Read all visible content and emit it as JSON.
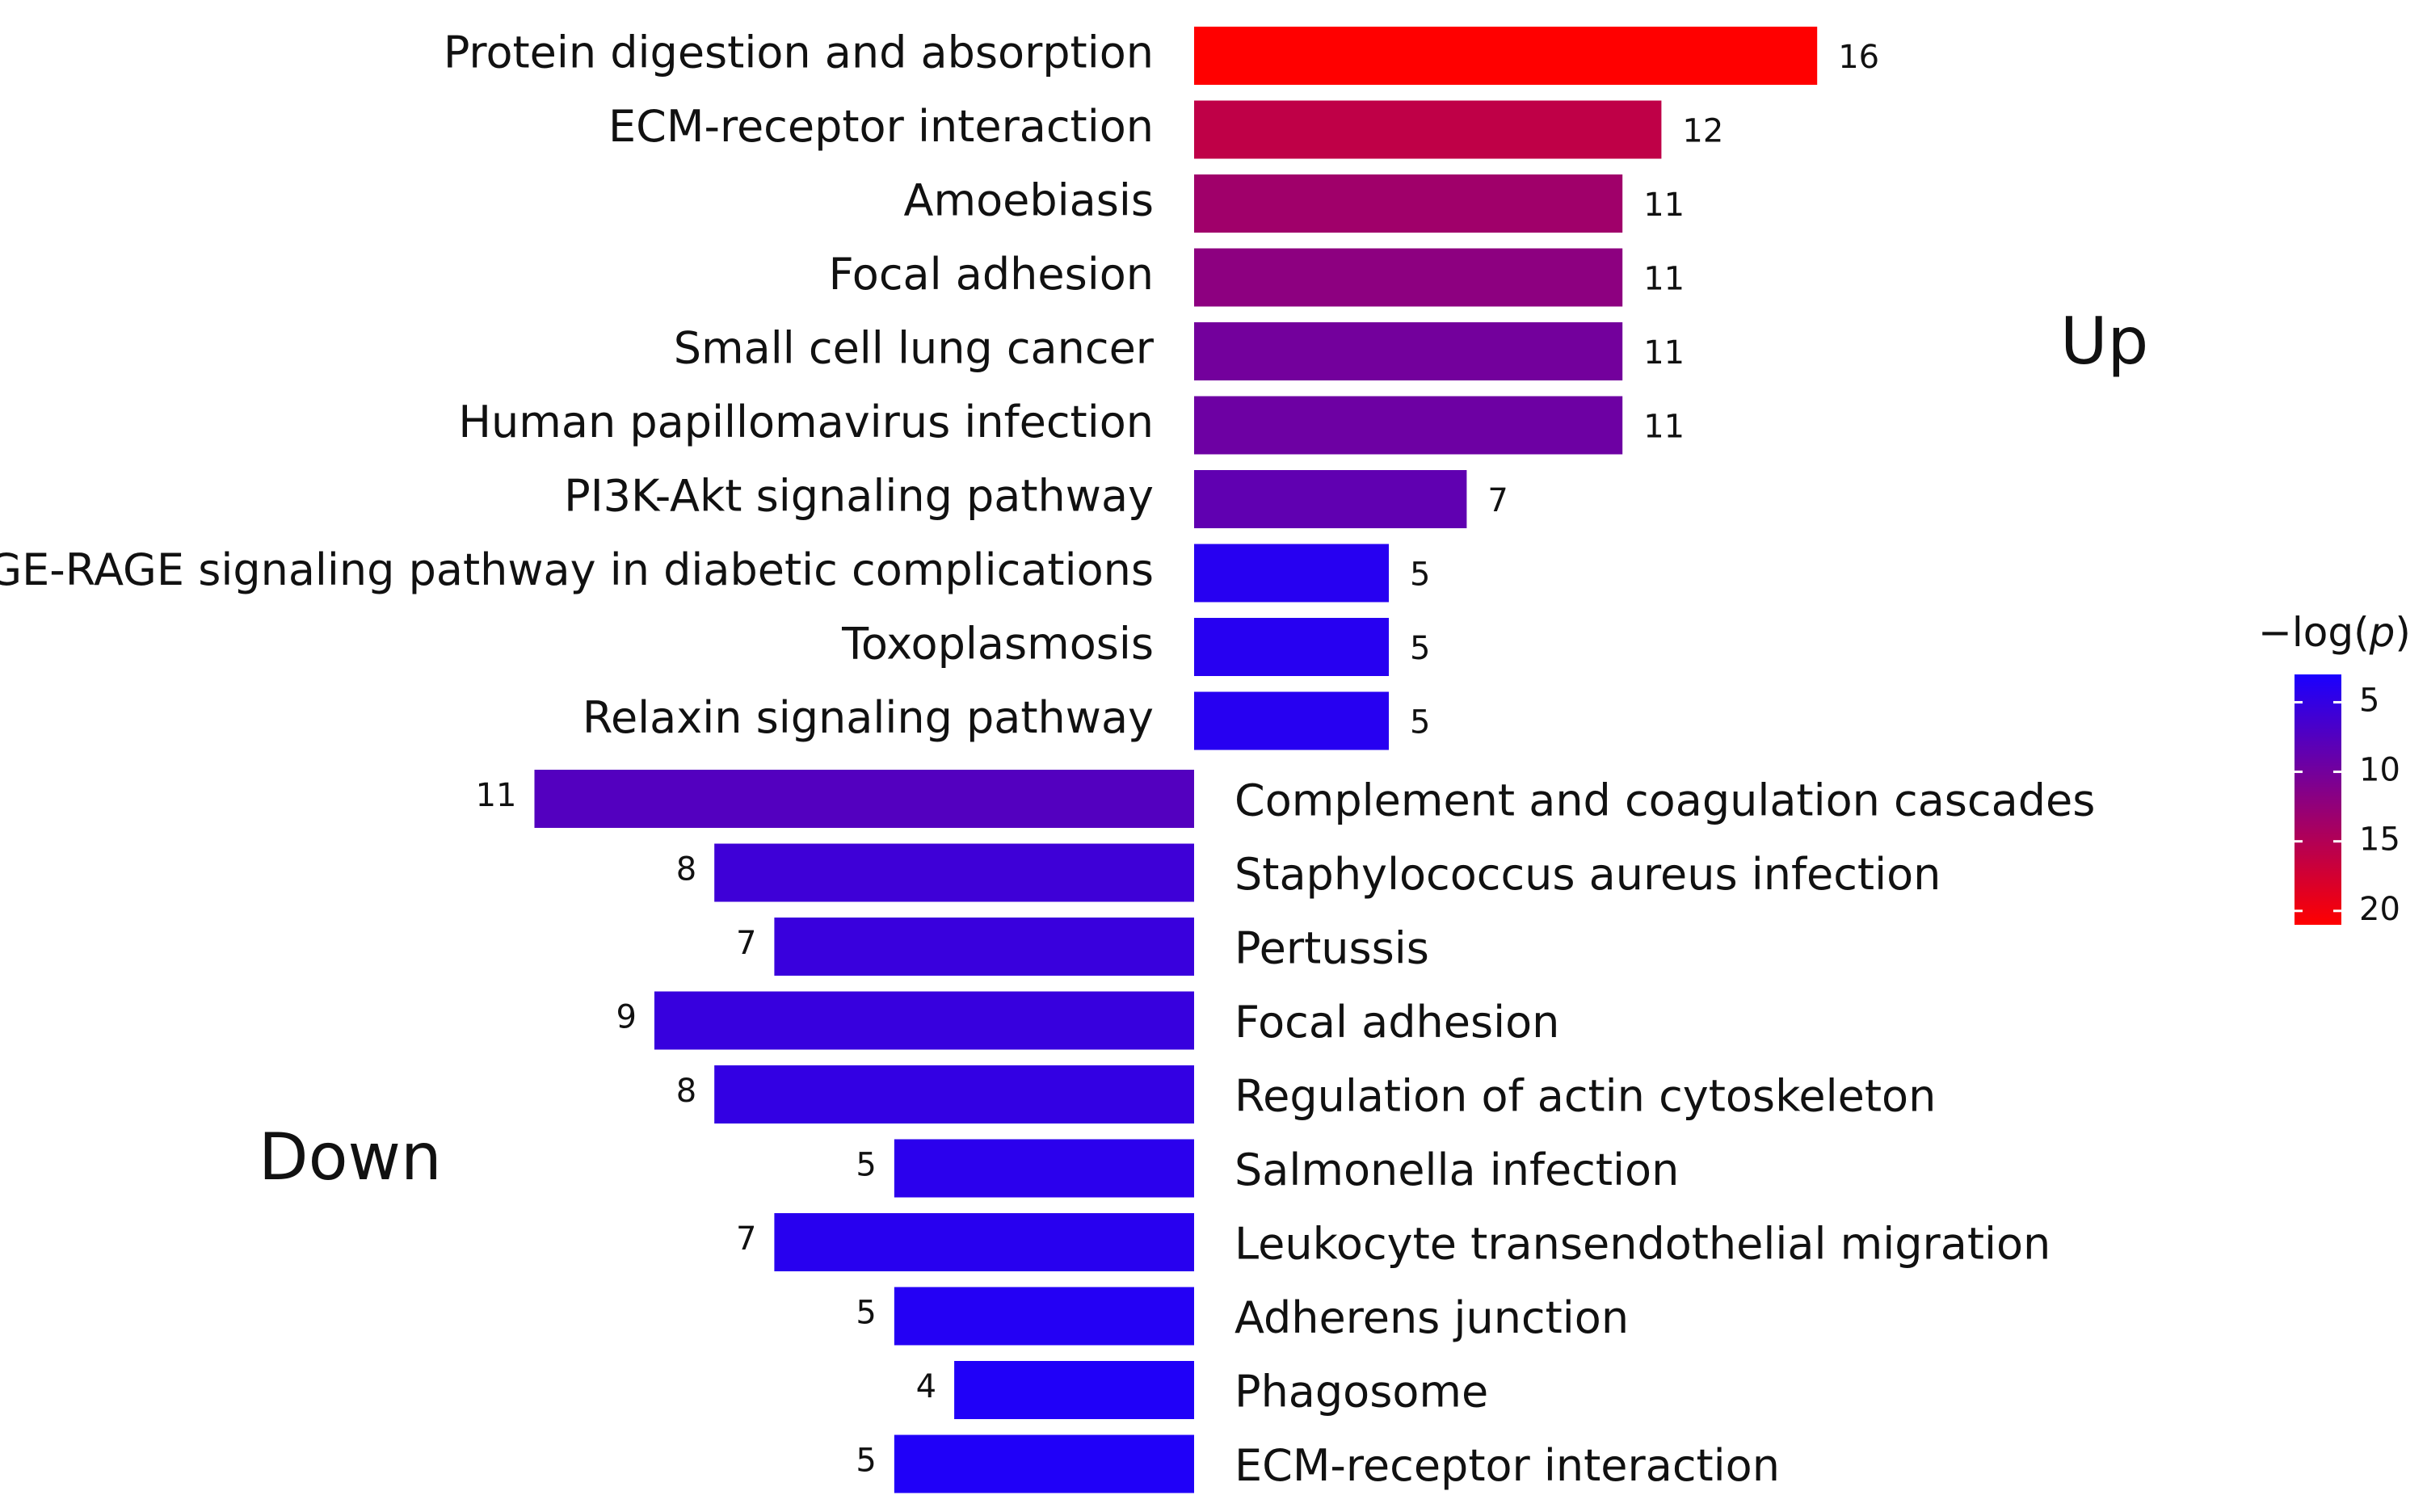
{
  "chart_data": {
    "type": "bar",
    "orientation": "horizontal-diverging",
    "colorscale": {
      "title_prefix": "−log(",
      "title_var": "p",
      "title_suffix": ")",
      "min": 3,
      "max": 21,
      "ticks": [
        5,
        10,
        15,
        20
      ],
      "low_color": "#1a00ff",
      "high_color": "#ff0000"
    },
    "up": {
      "label": "Up",
      "items": [
        {
          "pathway": "Protein digestion and absorption",
          "count": 16,
          "neglogp": 21.0
        },
        {
          "pathway": "ECM-receptor interaction",
          "count": 12,
          "neglogp": 16.0
        },
        {
          "pathway": "Amoebiasis",
          "count": 11,
          "neglogp": 13.5
        },
        {
          "pathway": "Focal adhesion",
          "count": 11,
          "neglogp": 12.0
        },
        {
          "pathway": "Small cell lung cancer",
          "count": 11,
          "neglogp": 10.0
        },
        {
          "pathway": "Human papillomavirus infection",
          "count": 11,
          "neglogp": 9.5
        },
        {
          "pathway": "PI3K-Akt signaling pathway",
          "count": 7,
          "neglogp": 8.5
        },
        {
          "pathway": "AGE-RAGE signaling pathway in diabetic complications",
          "count": 5,
          "neglogp": 4.0
        },
        {
          "pathway": "Toxoplasmosis",
          "count": 5,
          "neglogp": 4.0
        },
        {
          "pathway": "Relaxin signaling pathway",
          "count": 5,
          "neglogp": 4.0
        }
      ]
    },
    "down": {
      "label": "Down",
      "items": [
        {
          "pathway": "Complement and coagulation cascades",
          "count": 11,
          "neglogp": 7.5
        },
        {
          "pathway": "Staphylococcus aureus infection",
          "count": 8,
          "neglogp": 5.8
        },
        {
          "pathway": "Pertussis",
          "count": 7,
          "neglogp": 5.4
        },
        {
          "pathway": "Focal adhesion",
          "count": 9,
          "neglogp": 5.3
        },
        {
          "pathway": "Regulation of actin cytoskeleton",
          "count": 8,
          "neglogp": 5.0
        },
        {
          "pathway": "Salmonella infection",
          "count": 5,
          "neglogp": 4.3
        },
        {
          "pathway": "Leukocyte transendothelial migration",
          "count": 7,
          "neglogp": 4.1
        },
        {
          "pathway": "Adherens junction",
          "count": 5,
          "neglogp": 3.8
        },
        {
          "pathway": "Phagosome",
          "count": 4,
          "neglogp": 3.5
        },
        {
          "pathway": "ECM-receptor interaction",
          "count": 5,
          "neglogp": 3.5
        }
      ]
    }
  }
}
